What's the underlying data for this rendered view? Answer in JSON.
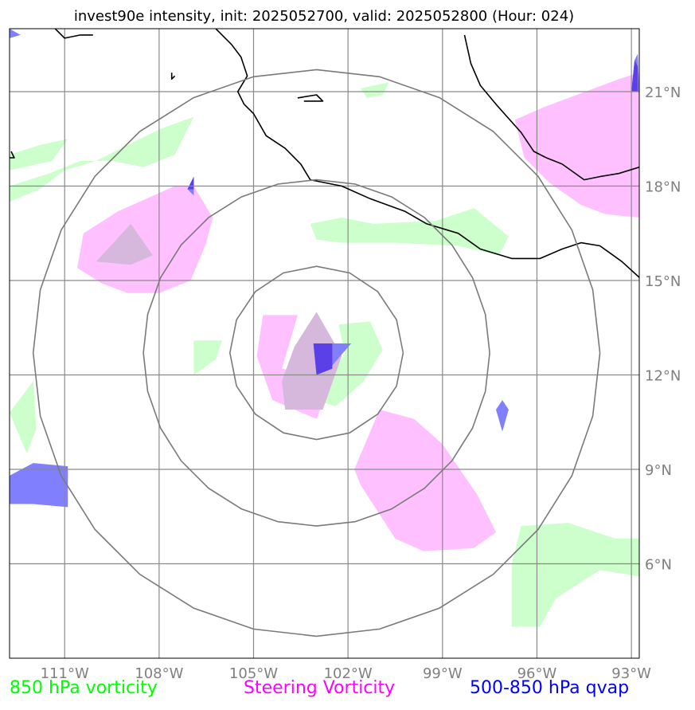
{
  "title": "invest90e intensity, init: 2025052700, valid: 2025052800 (Hour: 024)",
  "map": {
    "lon_range": [
      -112.75,
      -92.75
    ],
    "lat_range": [
      3.0,
      23.0
    ],
    "lon_ticks": [
      {
        "value": -111,
        "label": "111°W"
      },
      {
        "value": -108,
        "label": "108°W"
      },
      {
        "value": -105,
        "label": "105°W"
      },
      {
        "value": -102,
        "label": "102°W"
      },
      {
        "value": -99,
        "label": "99°W"
      },
      {
        "value": -96,
        "label": "96°W"
      },
      {
        "value": -93,
        "label": "93°W"
      }
    ],
    "lat_ticks": [
      {
        "value": 6,
        "label": "6°N"
      },
      {
        "value": 9,
        "label": "9°N"
      },
      {
        "value": 12,
        "label": "12°N"
      },
      {
        "value": 15,
        "label": "15°N"
      },
      {
        "value": 18,
        "label": "18°N"
      },
      {
        "value": 21,
        "label": "21°N"
      }
    ],
    "grid": true,
    "range_rings": {
      "center": [
        -103.0,
        12.7
      ],
      "radii_deg": [
        2.75,
        5.5,
        9.0
      ]
    }
  },
  "legend": [
    {
      "label": "850 hPa vorticity",
      "color": "#00ff00"
    },
    {
      "label": "Steering Vorticity",
      "color": "#ff00ff"
    },
    {
      "label": "500-850 hPa qvap",
      "color": "#0000ff"
    }
  ],
  "fields": {
    "vort850": {
      "color": "#ccffcc",
      "polygons": [
        [
          [
            -112.75,
            17.5
          ],
          [
            -111.8,
            17.9
          ],
          [
            -111.0,
            18.5
          ],
          [
            -110.0,
            18.8
          ],
          [
            -109.0,
            19.3
          ],
          [
            -108.0,
            19.8
          ],
          [
            -106.9,
            20.2
          ],
          [
            -107.5,
            19.0
          ],
          [
            -108.5,
            18.6
          ],
          [
            -109.5,
            18.8
          ],
          [
            -110.5,
            18.8
          ],
          [
            -111.5,
            18.4
          ],
          [
            -112.75,
            18.0
          ]
        ],
        [
          [
            -112.75,
            19.0
          ],
          [
            -111.8,
            19.3
          ],
          [
            -110.9,
            19.5
          ],
          [
            -111.4,
            18.8
          ],
          [
            -112.75,
            18.5
          ]
        ],
        [
          [
            -100.7,
            21.3
          ],
          [
            -100.9,
            20.9
          ],
          [
            -101.4,
            20.8
          ],
          [
            -101.6,
            21.1
          ]
        ],
        [
          [
            -101.2,
            16.8
          ],
          [
            -99.2,
            16.9
          ],
          [
            -98.0,
            17.3
          ],
          [
            -96.9,
            16.4
          ],
          [
            -97.2,
            15.8
          ],
          [
            -98.5,
            16.1
          ],
          [
            -100.5,
            16.2
          ],
          [
            -102.2,
            16.2
          ],
          [
            -103.0,
            16.3
          ],
          [
            -103.2,
            16.8
          ],
          [
            -102.2,
            17.0
          ]
        ],
        [
          [
            -102.1,
            12.7
          ],
          [
            -102.3,
            13.6
          ],
          [
            -101.3,
            13.7
          ],
          [
            -100.9,
            12.8
          ],
          [
            -101.5,
            11.8
          ],
          [
            -102.4,
            11.0
          ],
          [
            -103.0,
            11.2
          ]
        ],
        [
          [
            -106.9,
            12.0
          ],
          [
            -106.2,
            12.5
          ],
          [
            -106.0,
            13.1
          ],
          [
            -106.9,
            13.1
          ]
        ],
        [
          [
            -112.75,
            10.8
          ],
          [
            -112.0,
            11.8
          ],
          [
            -111.9,
            10.3
          ],
          [
            -112.2,
            9.5
          ]
        ],
        [
          [
            -96.5,
            7.2
          ],
          [
            -95.0,
            7.3
          ],
          [
            -93.5,
            6.8
          ],
          [
            -92.75,
            6.8
          ],
          [
            -92.75,
            5.6
          ],
          [
            -94.0,
            5.8
          ],
          [
            -95.4,
            4.9
          ],
          [
            -95.9,
            4.0
          ],
          [
            -96.8,
            4.0
          ],
          [
            -96.8,
            6.0
          ]
        ]
      ]
    },
    "steering": {
      "color": "#ffc0ff",
      "polygons": [
        [
          [
            -106.9,
            18.0
          ],
          [
            -106.3,
            17.0
          ],
          [
            -106.5,
            16.2
          ],
          [
            -107.0,
            15.0
          ],
          [
            -108.0,
            14.6
          ],
          [
            -109.0,
            14.6
          ],
          [
            -109.8,
            14.9
          ],
          [
            -110.6,
            15.4
          ],
          [
            -110.4,
            16.5
          ],
          [
            -109.3,
            17.2
          ],
          [
            -108.4,
            17.6
          ],
          [
            -107.5,
            18.0
          ]
        ],
        [
          [
            -104.1,
            12.2
          ],
          [
            -103.6,
            13.9
          ],
          [
            -104.7,
            13.9
          ],
          [
            -104.9,
            12.6
          ],
          [
            -104.4,
            11.2
          ],
          [
            -103.0,
            10.6
          ],
          [
            -102.5,
            11.9
          ]
        ],
        [
          [
            -101.8,
            9.0
          ],
          [
            -101.0,
            10.9
          ],
          [
            -99.9,
            10.6
          ],
          [
            -99.0,
            9.8
          ],
          [
            -97.9,
            8.2
          ],
          [
            -97.3,
            7.0
          ],
          [
            -98.0,
            6.5
          ],
          [
            -99.6,
            6.4
          ],
          [
            -100.5,
            6.8
          ],
          [
            -101.6,
            8.5
          ]
        ],
        [
          [
            -95.8,
            20.5
          ],
          [
            -93.4,
            21.4
          ],
          [
            -92.75,
            21.6
          ],
          [
            -92.75,
            17.0
          ],
          [
            -93.8,
            17.1
          ],
          [
            -94.6,
            17.4
          ],
          [
            -95.6,
            18.1
          ],
          [
            -96.4,
            18.9
          ],
          [
            -96.7,
            20.1
          ]
        ]
      ]
    },
    "steering_overlap": {
      "color": "#d6b8dc",
      "polygons": [
        [
          [
            -110.0,
            15.6
          ],
          [
            -108.9,
            16.8
          ],
          [
            -108.2,
            15.8
          ],
          [
            -108.9,
            15.5
          ]
        ],
        [
          [
            -103.7,
            12.9
          ],
          [
            -103.0,
            14.0
          ],
          [
            -102.2,
            12.6
          ],
          [
            -102.8,
            10.9
          ],
          [
            -104.0,
            10.9
          ],
          [
            -104.1,
            11.8
          ]
        ]
      ]
    },
    "qvap": {
      "color": "#8080ff",
      "polygons": [
        [
          [
            -103.0,
            12.0
          ],
          [
            -103.1,
            13.0
          ],
          [
            -101.9,
            13.0
          ],
          [
            -102.5,
            12.3
          ]
        ],
        [
          [
            -112.75,
            8.8
          ],
          [
            -112.0,
            9.2
          ],
          [
            -110.9,
            9.1
          ],
          [
            -110.9,
            7.8
          ],
          [
            -112.0,
            7.9
          ],
          [
            -112.75,
            7.9
          ]
        ],
        [
          [
            -97.1,
            10.2
          ],
          [
            -97.3,
            10.9
          ],
          [
            -97.1,
            11.2
          ],
          [
            -96.9,
            10.9
          ]
        ],
        [
          [
            -107.1,
            17.9
          ],
          [
            -106.9,
            18.3
          ],
          [
            -106.9,
            17.9
          ],
          [
            -106.9,
            17.7
          ]
        ],
        [
          [
            -92.9,
            22.0
          ],
          [
            -93.0,
            21.0
          ],
          [
            -92.75,
            21.0
          ],
          [
            -92.8,
            22.2
          ]
        ],
        [
          [
            -112.75,
            22.7
          ],
          [
            -112.4,
            22.8
          ],
          [
            -112.75,
            23.0
          ]
        ]
      ]
    },
    "qvap_dark": {
      "color": "#5a40e6",
      "polygons": [
        [
          [
            -103.0,
            12.0
          ],
          [
            -103.1,
            13.0
          ],
          [
            -102.5,
            13.0
          ],
          [
            -102.5,
            12.2
          ]
        ],
        [
          [
            -92.9,
            22.0
          ],
          [
            -93.0,
            21.0
          ],
          [
            -92.8,
            21.0
          ],
          [
            -92.8,
            21.8
          ]
        ],
        [
          [
            -107.1,
            17.9
          ],
          [
            -106.9,
            18.3
          ],
          [
            -106.9,
            17.9
          ]
        ]
      ]
    }
  },
  "coastlines": [
    [
      [
        -111.3,
        23.0
      ],
      [
        -111.0,
        22.7
      ],
      [
        -110.5,
        22.8
      ],
      [
        -110.1,
        22.8
      ]
    ],
    [
      [
        -106.2,
        23.0
      ],
      [
        -105.7,
        22.5
      ],
      [
        -105.4,
        22.1
      ],
      [
        -105.2,
        21.5
      ],
      [
        -105.5,
        21.0
      ],
      [
        -105.3,
        20.6
      ],
      [
        -105.0,
        20.3
      ],
      [
        -104.6,
        19.6
      ],
      [
        -104.0,
        19.2
      ],
      [
        -103.5,
        18.7
      ],
      [
        -103.2,
        18.2
      ],
      [
        -102.2,
        18.0
      ],
      [
        -101.3,
        17.6
      ],
      [
        -100.2,
        17.2
      ],
      [
        -99.5,
        16.8
      ],
      [
        -98.5,
        16.5
      ],
      [
        -97.8,
        16.0
      ],
      [
        -96.8,
        15.7
      ],
      [
        -95.9,
        15.7
      ],
      [
        -95.2,
        16.0
      ],
      [
        -94.6,
        16.2
      ],
      [
        -94.0,
        16.1
      ],
      [
        -93.3,
        15.6
      ],
      [
        -92.75,
        15.1
      ]
    ],
    [
      [
        -98.3,
        22.8
      ],
      [
        -98.1,
        21.9
      ],
      [
        -97.8,
        21.2
      ],
      [
        -97.3,
        20.6
      ],
      [
        -96.5,
        19.7
      ],
      [
        -96.1,
        19.1
      ],
      [
        -95.7,
        18.9
      ],
      [
        -95.2,
        18.7
      ],
      [
        -94.5,
        18.2
      ],
      [
        -94.0,
        18.3
      ],
      [
        -93.4,
        18.4
      ],
      [
        -92.75,
        18.6
      ]
    ],
    [
      [
        -103.6,
        20.8
      ],
      [
        -103.0,
        20.9
      ],
      [
        -102.8,
        20.7
      ],
      [
        -103.4,
        20.7
      ]
    ],
    [
      [
        -107.6,
        21.6
      ],
      [
        -107.6,
        21.4
      ],
      [
        -107.5,
        21.5
      ]
    ],
    [
      [
        -112.7,
        19.1
      ],
      [
        -112.6,
        18.9
      ],
      [
        -112.8,
        18.9
      ]
    ]
  ]
}
